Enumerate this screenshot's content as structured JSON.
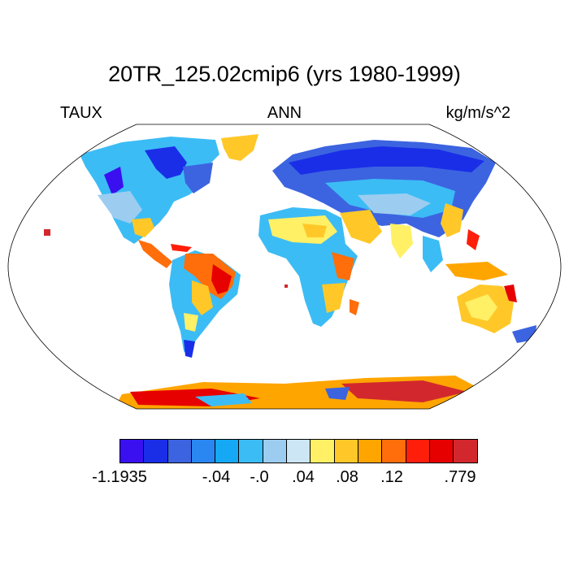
{
  "title": "20TR_125.02cmip6 (yrs 1980-1999)",
  "left_label": "TAUX",
  "center_label": "ANN",
  "right_label": "kg/m/s^2",
  "colorbar": {
    "colors": [
      "#3a0ff0",
      "#1a2ee8",
      "#3c64e0",
      "#2a86f0",
      "#14a8f5",
      "#3cbcf5",
      "#9ccdf0",
      "#cce6f5",
      "#fff066",
      "#ffc828",
      "#ffa500",
      "#ff6e0a",
      "#ff1e0a",
      "#e60000",
      "#d2282d"
    ],
    "labels": [
      "-1.1935",
      "-.04",
      "-.0",
      ".04",
      ".08",
      ".12",
      ".779"
    ]
  },
  "icons": {
    "map": "world-map-robinson-projection",
    "colorbar": "color-scale-bar"
  }
}
